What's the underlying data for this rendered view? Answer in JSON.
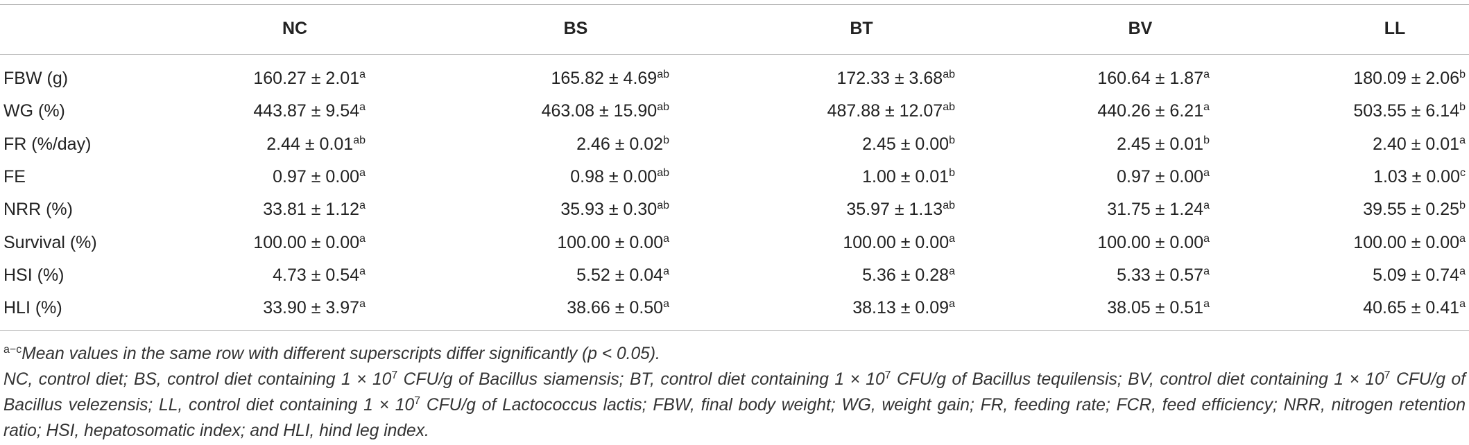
{
  "table": {
    "header": [
      "NC",
      "BS",
      "BT",
      "BV",
      "LL"
    ],
    "rows": [
      {
        "label": "FBW (g)",
        "cells": [
          {
            "value": "160.27 ± 2.01",
            "sup": "a"
          },
          {
            "value": "165.82 ± 4.69",
            "sup": "ab"
          },
          {
            "value": "172.33 ± 3.68",
            "sup": "ab"
          },
          {
            "value": "160.64 ± 1.87",
            "sup": "a"
          },
          {
            "value": "180.09 ± 2.06",
            "sup": "b"
          }
        ]
      },
      {
        "label": "WG (%)",
        "cells": [
          {
            "value": "443.87 ± 9.54",
            "sup": "a"
          },
          {
            "value": "463.08 ± 15.90",
            "sup": "ab"
          },
          {
            "value": "487.88 ± 12.07",
            "sup": "ab"
          },
          {
            "value": "440.26 ± 6.21",
            "sup": "a"
          },
          {
            "value": "503.55 ± 6.14",
            "sup": "b"
          }
        ]
      },
      {
        "label": "FR (%/day)",
        "cells": [
          {
            "value": "2.44 ± 0.01",
            "sup": "ab"
          },
          {
            "value": "2.46 ± 0.02",
            "sup": "b"
          },
          {
            "value": "2.45 ± 0.00",
            "sup": "b"
          },
          {
            "value": "2.45 ± 0.01",
            "sup": "b"
          },
          {
            "value": "2.40 ± 0.01",
            "sup": "a"
          }
        ]
      },
      {
        "label": "FE",
        "cells": [
          {
            "value": "0.97 ± 0.00",
            "sup": "a"
          },
          {
            "value": "0.98 ± 0.00",
            "sup": "ab"
          },
          {
            "value": "1.00 ± 0.01",
            "sup": "b"
          },
          {
            "value": "0.97 ± 0.00",
            "sup": "a"
          },
          {
            "value": "1.03 ± 0.00",
            "sup": "c"
          }
        ]
      },
      {
        "label": "NRR (%)",
        "cells": [
          {
            "value": "33.81 ± 1.12",
            "sup": "a"
          },
          {
            "value": "35.93 ± 0.30",
            "sup": "ab"
          },
          {
            "value": "35.97 ± 1.13",
            "sup": "ab"
          },
          {
            "value": "31.75 ± 1.24",
            "sup": "a"
          },
          {
            "value": "39.55 ± 0.25",
            "sup": "b"
          }
        ]
      },
      {
        "label": "Survival (%)",
        "cells": [
          {
            "value": "100.00 ± 0.00",
            "sup": "a"
          },
          {
            "value": "100.00 ± 0.00",
            "sup": "a"
          },
          {
            "value": "100.00 ± 0.00",
            "sup": "a"
          },
          {
            "value": "100.00 ± 0.00",
            "sup": "a"
          },
          {
            "value": "100.00 ± 0.00",
            "sup": "a"
          }
        ]
      },
      {
        "label": "HSI (%)",
        "cells": [
          {
            "value": "4.73 ± 0.54",
            "sup": "a"
          },
          {
            "value": "5.52 ± 0.04",
            "sup": "a"
          },
          {
            "value": "5.36 ± 0.28",
            "sup": "a"
          },
          {
            "value": "5.33 ± 0.57",
            "sup": "a"
          },
          {
            "value": "5.09 ± 0.74",
            "sup": "a"
          }
        ]
      },
      {
        "label": "HLI (%)",
        "cells": [
          {
            "value": "33.90 ± 3.97",
            "sup": "a"
          },
          {
            "value": "38.66 ± 0.50",
            "sup": "a"
          },
          {
            "value": "38.13 ± 0.09",
            "sup": "a"
          },
          {
            "value": "38.05 ± 0.51",
            "sup": "a"
          },
          {
            "value": "40.65 ± 0.41",
            "sup": "a"
          }
        ]
      }
    ]
  },
  "notes": [
    {
      "parts": [
        {
          "sup": "a−c",
          "text": "Mean values in the same row with different superscripts differ significantly (p < 0.05)."
        }
      ]
    },
    {
      "parts": [
        {
          "text": "NC, control diet; BS, control diet containing 1 × 10",
          "sup": "7"
        },
        {
          "text": " CFU/g of Bacillus siamensis; BT, control diet containing 1 × 10",
          "sup": "7"
        },
        {
          "text": " CFU/g of Bacillus tequilensis; BV, control diet containing 1 × 10",
          "sup": "7"
        },
        {
          "text": " CFU/g of Bacillus velezensis; LL, control diet containing 1 × 10",
          "sup": "7"
        },
        {
          "text": " CFU/g of Lactococcus lactis; FBW, final body weight; WG, weight gain; FR, feeding rate; FCR, feed efficiency; NRR, nitrogen retention ratio; HSI, hepatosomatic index; and HLI, hind leg index."
        }
      ]
    }
  ]
}
